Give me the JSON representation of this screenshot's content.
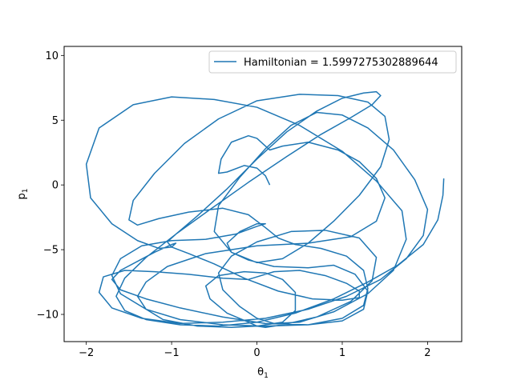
{
  "chart_data": {
    "type": "line",
    "title": "",
    "xlabel": "θ",
    "xlabel_sub": "1",
    "ylabel": "p",
    "ylabel_sub": "1",
    "xlim": [
      -2.26,
      2.4
    ],
    "ylim": [
      -12.1,
      10.7
    ],
    "xticks": [
      -2,
      -1,
      0,
      1,
      2
    ],
    "xtick_labels": [
      "−2",
      "−1",
      "0",
      "1",
      "2"
    ],
    "yticks": [
      -10,
      -5,
      0,
      5,
      10
    ],
    "ytick_labels": [
      "−10",
      "−5",
      "0",
      "5",
      "10"
    ],
    "grid": false,
    "legend_position": "top-right",
    "series": [
      {
        "name": "Hamiltonian = 1.5997275302889644",
        "color": "#1f77b4",
        "x": [
          0.15,
          0.1,
          0.0,
          -0.15,
          -0.35,
          -0.45,
          -0.42,
          -0.3,
          -0.1,
          0.0,
          0.15,
          0.3,
          0.6,
          0.95,
          1.2,
          1.4,
          1.5,
          1.4,
          1.1,
          0.6,
          0.0,
          -0.6,
          -1.05,
          -1.3,
          -1.4,
          -1.3,
          -1.1,
          -0.7,
          -0.3,
          0.0,
          0.3,
          0.45,
          0.45,
          0.3,
          0.1,
          -0.15,
          -0.45,
          -0.6,
          -0.55,
          -0.35,
          -0.1,
          0.0,
          0.1,
          0.3,
          0.7,
          1.1,
          1.35,
          1.4,
          1.2,
          0.8,
          0.4,
          0.0,
          -0.3,
          -0.45,
          -0.4,
          -0.2,
          0.0,
          0.2,
          0.5,
          0.9,
          1.3,
          1.6,
          1.75,
          1.7,
          1.4,
          1.0,
          0.5,
          0.0,
          -0.5,
          -1.0,
          -1.45,
          -1.85,
          -2.0,
          -1.95,
          -1.7,
          -1.4,
          -1.15,
          -1.0,
          -0.95,
          -1.0,
          -1.2,
          -1.4,
          -1.6,
          -1.7,
          -1.6,
          -1.3,
          -0.9,
          -0.4,
          0.1,
          0.6,
          1.0,
          1.25,
          1.3,
          1.15,
          0.9,
          0.6,
          0.2,
          -0.1,
          -0.3,
          -0.35,
          -0.2,
          0.0,
          0.1,
          0.0,
          -0.25,
          -0.6,
          -1.0,
          -1.35,
          -1.6,
          -1.7,
          -1.6,
          -1.3,
          -0.9,
          -0.4,
          0.1,
          0.6,
          1.0,
          1.25,
          1.3,
          1.25,
          1.05,
          0.75,
          0.45,
          0.25,
          0.1,
          -0.1,
          -0.4,
          -0.8,
          -1.15,
          -1.4,
          -1.5,
          -1.45,
          -1.2,
          -0.85,
          -0.45,
          0.0,
          0.5,
          0.95,
          1.3,
          1.5,
          1.55,
          1.45,
          1.2,
          0.9,
          0.6,
          0.3,
          0.0,
          -0.3,
          -0.5,
          -0.45,
          -0.2,
          0.1,
          0.4,
          0.7,
          1.0,
          1.3,
          1.6,
          1.85,
          2.0,
          1.95,
          1.75,
          1.45,
          1.05,
          0.6,
          0.1,
          -0.4,
          -0.9,
          -1.35,
          -1.7,
          -1.85,
          -1.8,
          -1.55,
          -1.2,
          -0.8,
          -0.4,
          -0.1,
          0.0,
          0.2,
          0.5,
          0.8,
          1.05,
          1.2,
          1.2,
          1.0,
          0.65,
          0.25,
          -0.15,
          -0.5,
          -0.8,
          -1.0,
          -1.05,
          -0.95,
          -0.7,
          -0.35,
          0.0,
          0.35,
          0.7,
          1.0,
          1.25,
          1.4,
          1.45,
          1.35,
          1.1,
          0.75,
          0.35,
          -0.1,
          -0.55,
          -0.95,
          -1.3,
          -1.55,
          -1.65,
          -1.55,
          -1.3,
          -0.9,
          -0.45,
          0.0,
          0.45,
          0.9,
          1.3,
          1.65,
          1.95,
          2.12,
          2.18,
          2.19
        ],
        "y": [
          0.0,
          0.7,
          1.3,
          1.5,
          1.0,
          0.9,
          2.0,
          3.3,
          3.8,
          3.6,
          2.7,
          3.0,
          3.3,
          2.7,
          1.8,
          0.5,
          -1.0,
          -2.8,
          -4.0,
          -4.5,
          -4.7,
          -5.3,
          -6.3,
          -7.5,
          -8.6,
          -9.6,
          -10.4,
          -10.9,
          -11.0,
          -10.9,
          -10.6,
          -9.7,
          -8.3,
          -7.3,
          -6.8,
          -6.7,
          -7.0,
          -7.8,
          -8.8,
          -9.9,
          -10.6,
          -10.9,
          -11.0,
          -10.8,
          -10.2,
          -9.0,
          -7.4,
          -5.6,
          -4.1,
          -3.5,
          -3.6,
          -4.4,
          -5.5,
          -6.8,
          -8.1,
          -9.4,
          -10.3,
          -10.7,
          -10.6,
          -9.8,
          -8.4,
          -6.6,
          -4.2,
          -2.0,
          0.3,
          2.6,
          4.6,
          6.0,
          6.6,
          6.8,
          6.2,
          4.4,
          1.6,
          -1.0,
          -3.0,
          -4.3,
          -4.9,
          -4.8,
          -4.5,
          -4.6,
          -5.2,
          -5.9,
          -6.6,
          -7.3,
          -8.1,
          -8.8,
          -9.5,
          -10.2,
          -10.7,
          -10.8,
          -10.5,
          -9.6,
          -8.2,
          -6.9,
          -6.2,
          -6.4,
          -6.3,
          -5.8,
          -5.2,
          -4.5,
          -3.6,
          -3.0,
          -3.0,
          -3.2,
          -3.8,
          -4.2,
          -4.3,
          -4.7,
          -5.7,
          -7.0,
          -8.4,
          -9.6,
          -10.4,
          -10.8,
          -10.9,
          -10.8,
          -10.3,
          -9.3,
          -8.0,
          -6.6,
          -5.5,
          -4.9,
          -4.6,
          -4.1,
          -3.3,
          -2.3,
          -1.8,
          -2.1,
          -2.6,
          -3.1,
          -2.7,
          -1.2,
          0.9,
          3.2,
          5.1,
          6.5,
          7.0,
          6.9,
          6.4,
          5.3,
          3.5,
          1.4,
          -0.8,
          -2.8,
          -4.5,
          -5.7,
          -6.0,
          -5.2,
          -3.6,
          -1.6,
          0.6,
          2.8,
          4.6,
          5.6,
          5.4,
          4.4,
          2.7,
          0.4,
          -1.9,
          -3.9,
          -5.7,
          -7.3,
          -8.6,
          -9.6,
          -10.3,
          -10.6,
          -10.7,
          -10.3,
          -9.5,
          -8.3,
          -7.1,
          -6.6,
          -6.7,
          -6.9,
          -7.2,
          -7.3,
          -7.1,
          -6.7,
          -6.6,
          -7.0,
          -7.6,
          -8.2,
          -8.7,
          -8.9,
          -8.8,
          -8.2,
          -7.2,
          -6.1,
          -5.3,
          -4.8,
          -4.4,
          -3.8,
          -2.4,
          -0.3,
          2.0,
          4.1,
          5.7,
          6.7,
          7.1,
          7.2,
          6.9,
          6.2,
          5.2,
          3.9,
          2.2,
          0.2,
          -1.9,
          -3.8,
          -5.6,
          -7.2,
          -8.6,
          -9.7,
          -10.4,
          -10.8,
          -10.9,
          -10.6,
          -9.9,
          -8.8,
          -7.5,
          -6.2,
          -4.6,
          -2.7,
          -0.8,
          0.5
        ]
      }
    ]
  }
}
